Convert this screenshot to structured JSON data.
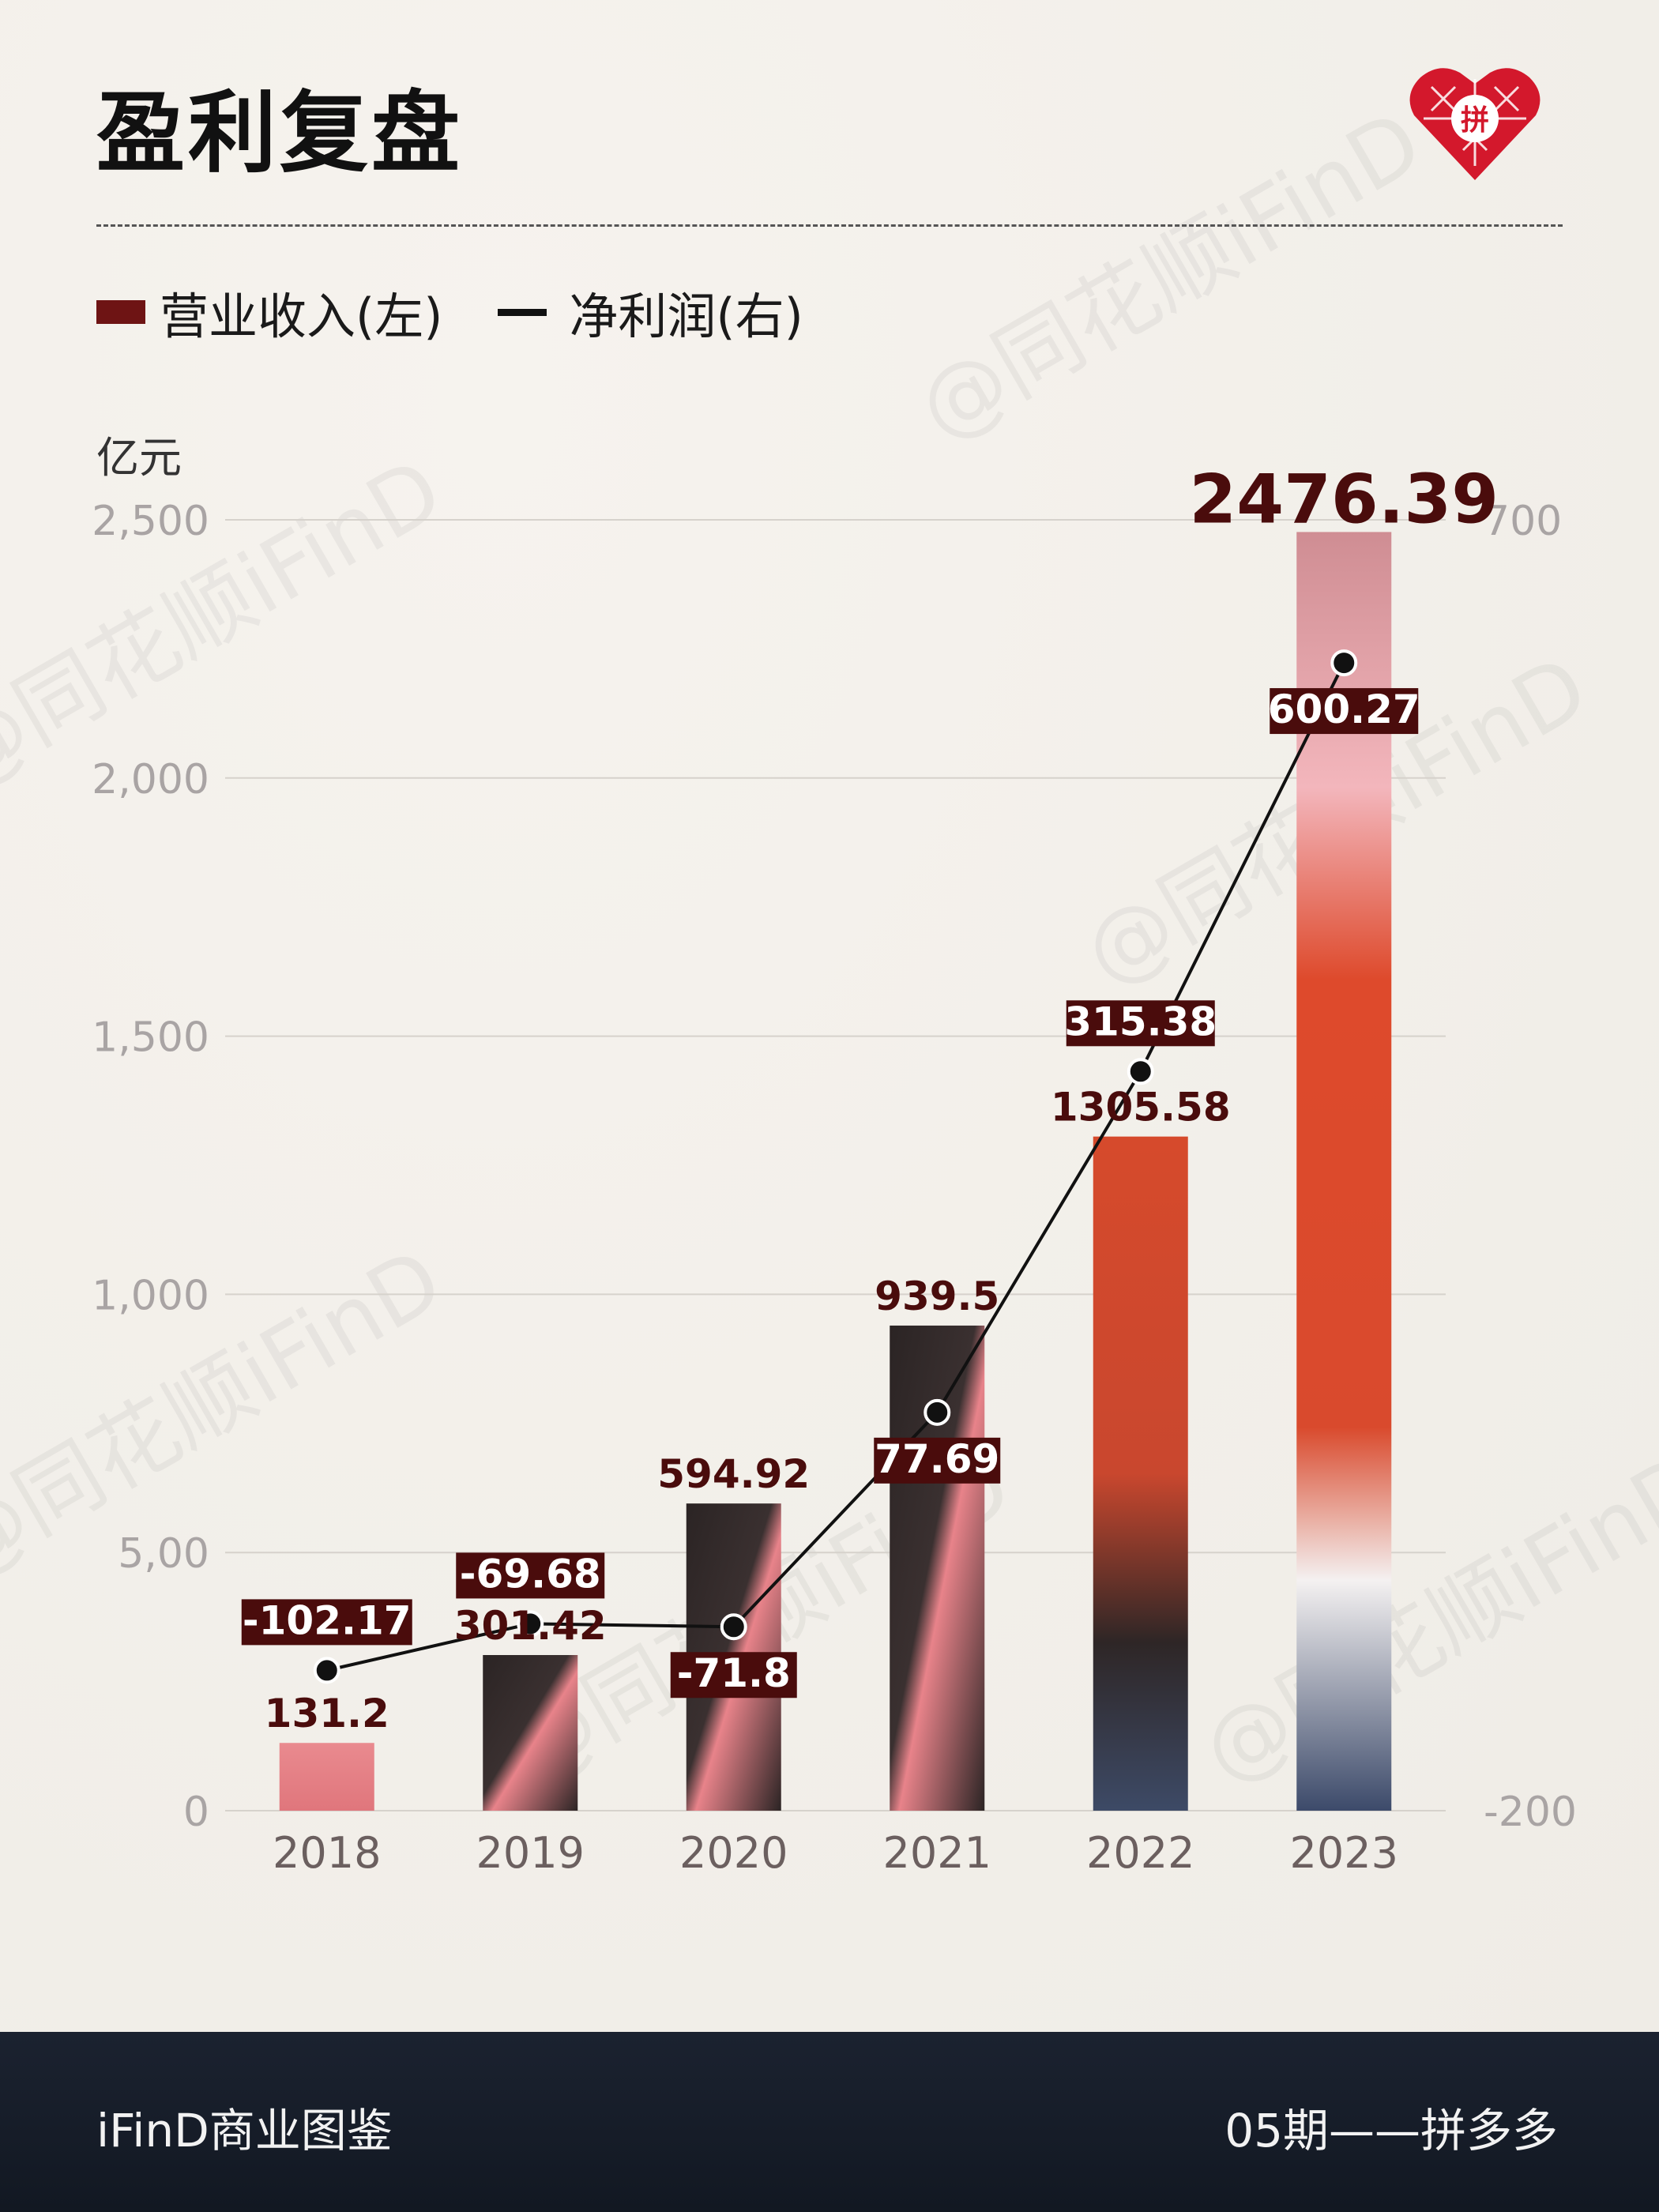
{
  "title": "盈利复盘",
  "legend": {
    "revenue": "营业收入(左)",
    "profit": "净利润(右)"
  },
  "unit": "亿元",
  "watermark": "@同花顺iFinD",
  "logo_char": "拼",
  "footer": {
    "left": "iFinD商业图鉴",
    "right": "05期——拼多多"
  },
  "colors": {
    "accent": "#6e1414",
    "bar_label": "#4a0c0c",
    "label_box": "#4a0c0c",
    "line": "#111111",
    "tick": "#a9a4a4",
    "year": "#6b5f5f"
  },
  "chart_data": {
    "type": "bar",
    "categories": [
      "2018",
      "2019",
      "2020",
      "2021",
      "2022",
      "2023"
    ],
    "series": [
      {
        "name": "营业收入(左)",
        "type": "bar",
        "axis": "left",
        "values": [
          131.2,
          301.42,
          594.92,
          939.5,
          1305.58,
          2476.39
        ],
        "labels": [
          "131.2",
          "301.42",
          "594.92",
          "939.5",
          "1305.58",
          "2476.39"
        ]
      },
      {
        "name": "净利润(右)",
        "type": "line",
        "axis": "right",
        "values": [
          -102.17,
          -69.68,
          -71.8,
          77.69,
          315.38,
          600.27
        ],
        "labels": [
          "-102.17",
          "-69.68",
          "-71.8",
          "77.69",
          "315.38",
          "600.27"
        ]
      }
    ],
    "left_axis": {
      "ylim": [
        0,
        2500
      ],
      "ticks": [
        "0",
        "5,00",
        "1,000",
        "1,500",
        "2,000",
        "2,500"
      ]
    },
    "right_axis": {
      "ylim": [
        -200,
        700
      ],
      "ticks": [
        "-200",
        "700"
      ]
    },
    "grid": true,
    "legend": "top-left"
  }
}
